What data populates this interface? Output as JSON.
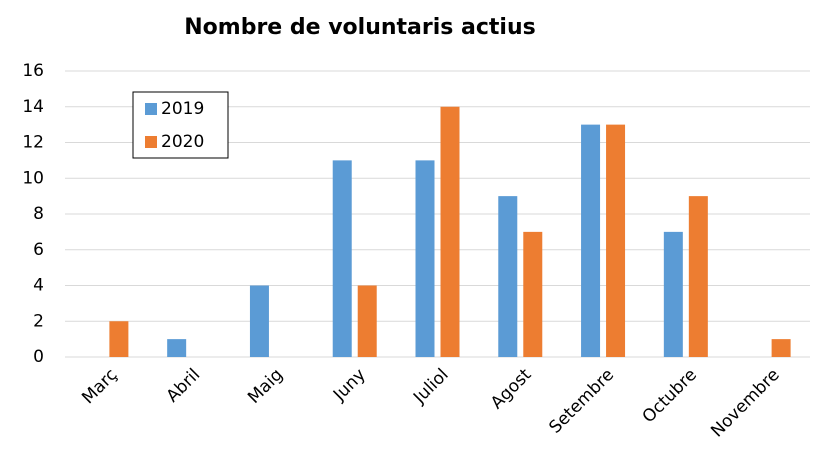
{
  "chart_data": {
    "type": "bar",
    "title": "Nombre de voluntaris actius",
    "categories": [
      "Març",
      "Abril",
      "Maig",
      "Juny",
      "Juliol",
      "Agost",
      "Setembre",
      "Octubre",
      "Novembre"
    ],
    "series": [
      {
        "name": "2019",
        "color": "#5b9bd5",
        "values": [
          0,
          1,
          4,
          11,
          11,
          9,
          13,
          7,
          0
        ]
      },
      {
        "name": "2020",
        "color": "#ed7d31",
        "values": [
          2,
          0,
          0,
          4,
          14,
          7,
          13,
          9,
          1
        ]
      }
    ],
    "ylim": [
      0,
      16
    ],
    "yticks": [
      0,
      2,
      4,
      6,
      8,
      10,
      12,
      14,
      16
    ],
    "grid": true,
    "legend": "upper left"
  }
}
